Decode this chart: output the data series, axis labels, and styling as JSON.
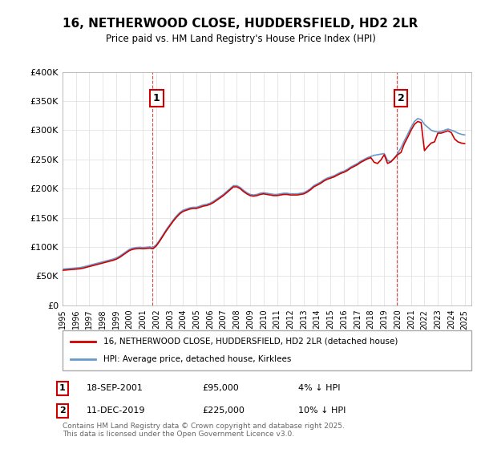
{
  "title": "16, NETHERWOOD CLOSE, HUDDERSFIELD, HD2 2LR",
  "subtitle": "Price paid vs. HM Land Registry's House Price Index (HPI)",
  "ylabel_ticks": [
    "£0",
    "£50K",
    "£100K",
    "£150K",
    "£200K",
    "£250K",
    "£300K",
    "£350K",
    "£400K"
  ],
  "ylim": [
    0,
    400000
  ],
  "xlim_start": 1995.0,
  "xlim_end": 2025.5,
  "legend_line1": "16, NETHERWOOD CLOSE, HUDDERSFIELD, HD2 2LR (detached house)",
  "legend_line2": "HPI: Average price, detached house, Kirklees",
  "annotation1_label": "1",
  "annotation1_date": "18-SEP-2001",
  "annotation1_price": "£95,000",
  "annotation1_note": "4% ↓ HPI",
  "annotation2_label": "2",
  "annotation2_date": "11-DEC-2019",
  "annotation2_price": "£225,000",
  "annotation2_note": "10% ↓ HPI",
  "footer": "Contains HM Land Registry data © Crown copyright and database right 2025.\nThis data is licensed under the Open Government Licence v3.0.",
  "line_color_red": "#cc0000",
  "line_color_blue": "#6699cc",
  "annotation_color": "#cc0000",
  "background_color": "#ffffff",
  "grid_color": "#dddddd",
  "sale1_x": 2001.72,
  "sale1_y": 95000,
  "sale2_x": 2019.95,
  "sale2_y": 225000,
  "hpi_years": [
    1995.0,
    1995.25,
    1995.5,
    1995.75,
    1996.0,
    1996.25,
    1996.5,
    1996.75,
    1997.0,
    1997.25,
    1997.5,
    1997.75,
    1998.0,
    1998.25,
    1998.5,
    1998.75,
    1999.0,
    1999.25,
    1999.5,
    1999.75,
    2000.0,
    2000.25,
    2000.5,
    2000.75,
    2001.0,
    2001.25,
    2001.5,
    2001.75,
    2002.0,
    2002.25,
    2002.5,
    2002.75,
    2003.0,
    2003.25,
    2003.5,
    2003.75,
    2004.0,
    2004.25,
    2004.5,
    2004.75,
    2005.0,
    2005.25,
    2005.5,
    2005.75,
    2006.0,
    2006.25,
    2006.5,
    2006.75,
    2007.0,
    2007.25,
    2007.5,
    2007.75,
    2008.0,
    2008.25,
    2008.5,
    2008.75,
    2009.0,
    2009.25,
    2009.5,
    2009.75,
    2010.0,
    2010.25,
    2010.5,
    2010.75,
    2011.0,
    2011.25,
    2011.5,
    2011.75,
    2012.0,
    2012.25,
    2012.5,
    2012.75,
    2013.0,
    2013.25,
    2013.5,
    2013.75,
    2014.0,
    2014.25,
    2014.5,
    2014.75,
    2015.0,
    2015.25,
    2015.5,
    2015.75,
    2016.0,
    2016.25,
    2016.5,
    2016.75,
    2017.0,
    2017.25,
    2017.5,
    2017.75,
    2018.0,
    2018.25,
    2018.5,
    2018.75,
    2019.0,
    2019.25,
    2019.5,
    2019.75,
    2020.0,
    2020.25,
    2020.5,
    2020.75,
    2021.0,
    2021.25,
    2021.5,
    2021.75,
    2022.0,
    2022.25,
    2022.5,
    2022.75,
    2023.0,
    2023.25,
    2023.5,
    2023.75,
    2024.0,
    2024.25,
    2024.5,
    2024.75,
    2025.0
  ],
  "hpi_values": [
    62000,
    62500,
    63000,
    63500,
    64000,
    64500,
    65500,
    67000,
    68500,
    70000,
    71500,
    73000,
    74500,
    76000,
    77500,
    79000,
    81000,
    84000,
    88000,
    92000,
    96000,
    98000,
    99000,
    99500,
    99000,
    99500,
    100000,
    99000,
    104000,
    112000,
    121000,
    130000,
    138000,
    146000,
    153000,
    159000,
    163000,
    165000,
    167000,
    168000,
    168000,
    170000,
    172000,
    173000,
    175000,
    178000,
    182000,
    186000,
    190000,
    195000,
    200000,
    205000,
    205000,
    202000,
    197000,
    193000,
    190000,
    189000,
    190000,
    192000,
    193000,
    192000,
    191000,
    190000,
    190000,
    191000,
    192000,
    192000,
    191000,
    191000,
    191000,
    192000,
    193000,
    196000,
    200000,
    205000,
    208000,
    211000,
    215000,
    218000,
    220000,
    222000,
    225000,
    228000,
    230000,
    233000,
    237000,
    240000,
    243000,
    247000,
    250000,
    253000,
    255000,
    257000,
    258000,
    259000,
    260000,
    248000,
    246000,
    252000,
    260000,
    270000,
    282000,
    293000,
    305000,
    315000,
    320000,
    318000,
    310000,
    305000,
    300000,
    298000,
    297000,
    298000,
    300000,
    302000,
    300000,
    298000,
    295000,
    293000,
    292000
  ],
  "red_years": [
    1995.0,
    1995.25,
    1995.5,
    1995.75,
    1996.0,
    1996.25,
    1996.5,
    1996.75,
    1997.0,
    1997.25,
    1997.5,
    1997.75,
    1998.0,
    1998.25,
    1998.5,
    1998.75,
    1999.0,
    1999.25,
    1999.5,
    1999.75,
    2000.0,
    2000.25,
    2000.5,
    2000.75,
    2001.0,
    2001.25,
    2001.5,
    2001.75,
    2002.0,
    2002.25,
    2002.5,
    2002.75,
    2003.0,
    2003.25,
    2003.5,
    2003.75,
    2004.0,
    2004.25,
    2004.5,
    2004.75,
    2005.0,
    2005.25,
    2005.5,
    2005.75,
    2006.0,
    2006.25,
    2006.5,
    2006.75,
    2007.0,
    2007.25,
    2007.5,
    2007.75,
    2008.0,
    2008.25,
    2008.5,
    2008.75,
    2009.0,
    2009.25,
    2009.5,
    2009.75,
    2010.0,
    2010.25,
    2010.5,
    2010.75,
    2011.0,
    2011.25,
    2011.5,
    2011.75,
    2012.0,
    2012.25,
    2012.5,
    2012.75,
    2013.0,
    2013.25,
    2013.5,
    2013.75,
    2014.0,
    2014.25,
    2014.5,
    2014.75,
    2015.0,
    2015.25,
    2015.5,
    2015.75,
    2016.0,
    2016.25,
    2016.5,
    2016.75,
    2017.0,
    2017.25,
    2017.5,
    2017.75,
    2018.0,
    2018.25,
    2018.5,
    2018.75,
    2019.0,
    2019.25,
    2019.5,
    2019.75,
    2020.0,
    2020.25,
    2020.5,
    2020.75,
    2021.0,
    2021.25,
    2021.5,
    2021.75,
    2022.0,
    2022.25,
    2022.5,
    2022.75,
    2023.0,
    2023.25,
    2023.5,
    2023.75,
    2024.0,
    2024.25,
    2024.5,
    2024.75,
    2025.0
  ],
  "red_values": [
    60000,
    60500,
    61000,
    61500,
    62000,
    62500,
    63500,
    65000,
    66500,
    68000,
    69500,
    71000,
    72500,
    74000,
    75500,
    77000,
    79000,
    82000,
    86000,
    90000,
    94000,
    96000,
    97000,
    97500,
    97000,
    97500,
    98000,
    97000,
    102000,
    110000,
    119000,
    128000,
    136000,
    144000,
    151000,
    157000,
    161000,
    163000,
    165000,
    166000,
    166000,
    168000,
    170000,
    171000,
    173000,
    176000,
    180000,
    184000,
    188000,
    193000,
    198000,
    203000,
    203000,
    200000,
    195000,
    191000,
    188000,
    187000,
    188000,
    190000,
    191000,
    190000,
    189000,
    188000,
    188000,
    189000,
    190000,
    190000,
    189000,
    189000,
    189000,
    190000,
    191000,
    194000,
    198000,
    203000,
    206000,
    209000,
    213000,
    216000,
    218000,
    220000,
    223000,
    226000,
    228000,
    231000,
    235000,
    238000,
    241000,
    245000,
    248000,
    251000,
    253000,
    245000,
    243000,
    249000,
    258000,
    243000,
    246000,
    252000,
    258000,
    262000,
    277000,
    288000,
    300000,
    310000,
    315000,
    313000,
    265000,
    272000,
    278000,
    280000,
    295000,
    295000,
    297000,
    299000,
    296000,
    285000,
    280000,
    278000,
    277000
  ]
}
